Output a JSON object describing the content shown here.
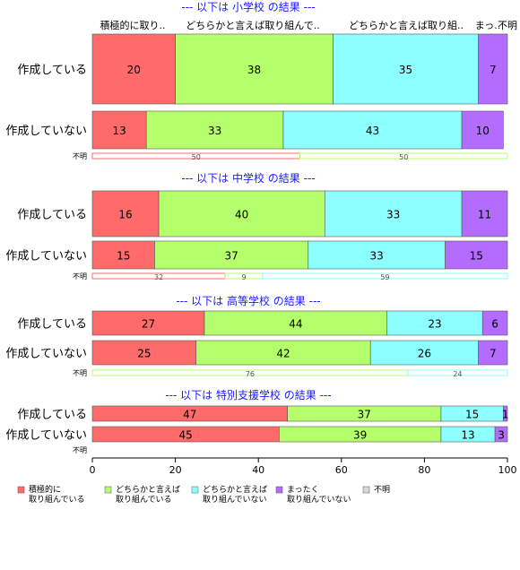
{
  "chart_data": {
    "type": "bar",
    "orientation": "horizontal",
    "stacked": "percent",
    "xlim": [
      0,
      100
    ],
    "xticks": [
      "0",
      "20",
      "40",
      "60",
      "80",
      "100"
    ],
    "column_headers": [
      "積極的に取り..",
      "どちらかと言えば取り組んで..",
      "どちらかと言えば取り組..",
      "まっ..",
      "不明"
    ],
    "series": [
      {
        "key": "s1",
        "label_lines": [
          "積極的に",
          "取り組んでいる"
        ],
        "color": "#ff6b6b"
      },
      {
        "key": "s2",
        "label_lines": [
          "どちらかと言えば",
          "取り組んでいる"
        ],
        "color": "#b4ff6b"
      },
      {
        "key": "s3",
        "label_lines": [
          "どちらかと言えば",
          "取り組んでいない"
        ],
        "color": "#8cffff"
      },
      {
        "key": "s4",
        "label_lines": [
          "まったく",
          "取り組んでいない"
        ],
        "color": "#b46bff"
      },
      {
        "key": "s5",
        "label_lines": [
          "不明"
        ],
        "color": "#d9d9d9"
      }
    ],
    "panels": [
      {
        "title": "--- 以下は 小学校 の結果 ---",
        "rows": [
          {
            "label": "作成している",
            "values": [
              20,
              38,
              35,
              7,
              0
            ]
          },
          {
            "label": "作成していない",
            "values": [
              13,
              33,
              43,
              10,
              0
            ]
          },
          {
            "label": "不明",
            "values": [
              50,
              50,
              0,
              0,
              0
            ]
          }
        ]
      },
      {
        "title": "--- 以下は 中学校 の結果 ---",
        "rows": [
          {
            "label": "作成している",
            "values": [
              16,
              40,
              33,
              11,
              0
            ]
          },
          {
            "label": "作成していない",
            "values": [
              15,
              37,
              33,
              15,
              0
            ]
          },
          {
            "label": "不明",
            "values": [
              32,
              9,
              59,
              0,
              0
            ]
          }
        ]
      },
      {
        "title": "--- 以下は 高等学校 の結果 ---",
        "rows": [
          {
            "label": "作成している",
            "values": [
              27,
              44,
              23,
              6,
              0
            ]
          },
          {
            "label": "作成していない",
            "values": [
              25,
              42,
              26,
              7,
              0
            ]
          },
          {
            "label": "不明",
            "values": [
              0,
              76,
              24,
              0,
              0
            ]
          }
        ]
      },
      {
        "title": "--- 以下は 特別支援学校 の結果 ---",
        "rows": [
          {
            "label": "作成している",
            "values": [
              47,
              37,
              15,
              1,
              0
            ]
          },
          {
            "label": "作成していない",
            "values": [
              45,
              39,
              13,
              3,
              0
            ]
          },
          {
            "label": "不明",
            "values": [
              0,
              0,
              0,
              0,
              0
            ]
          }
        ]
      }
    ],
    "legend_position": "bottom"
  }
}
